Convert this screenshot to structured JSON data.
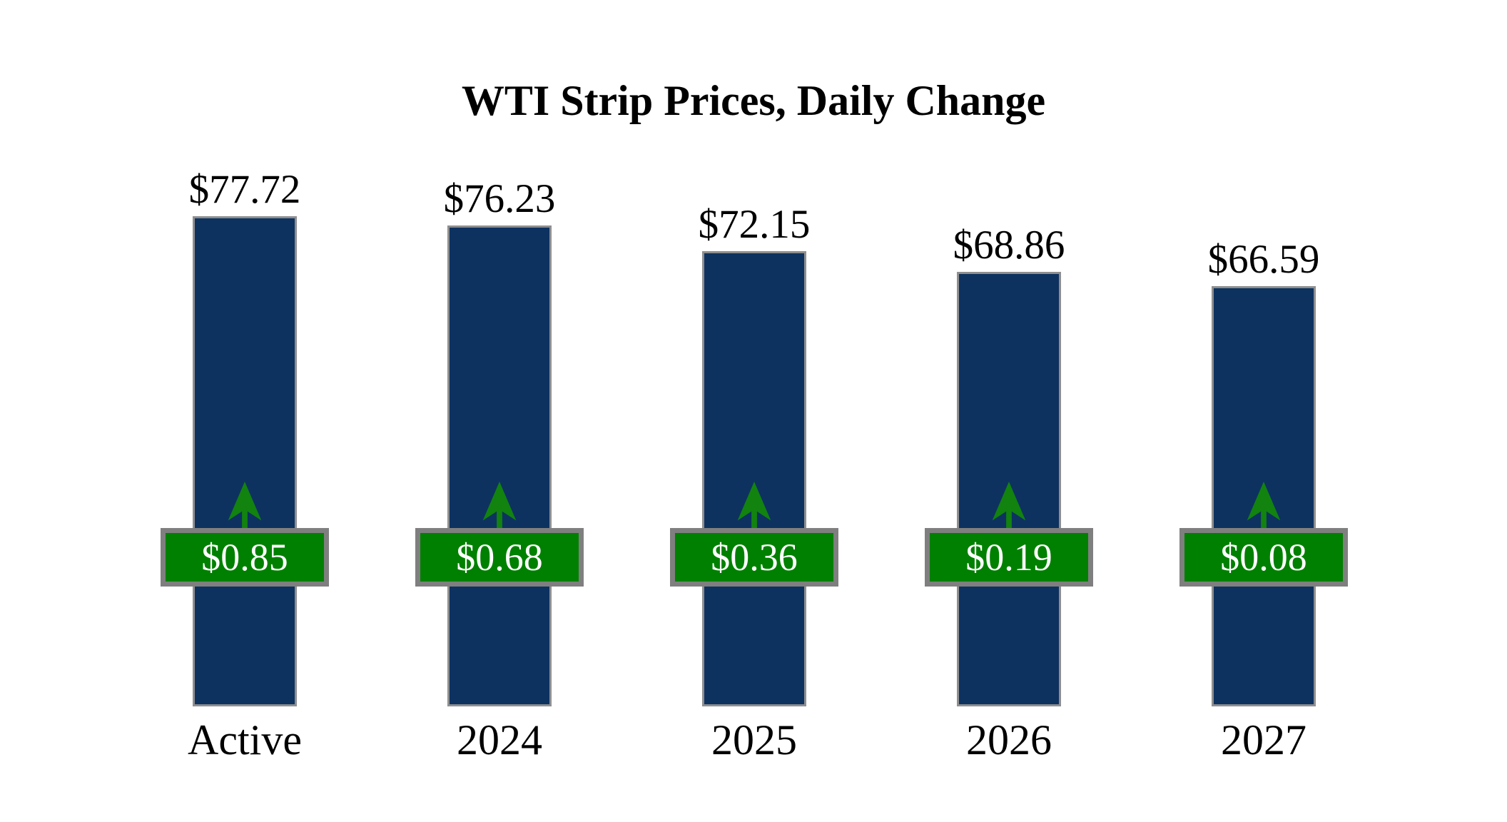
{
  "title": "WTI Strip Prices, Daily Change",
  "icons": {
    "change_direction": "up-arrow"
  },
  "colors": {
    "background": "#ffffff",
    "bar_fill": "#0d3260",
    "bar_border": "#8f8f8f",
    "change_fill": "#008000",
    "change_border": "#7f7f7f",
    "change_text": "#ffffff",
    "arrow_green": "#12830f",
    "label_text": "#000000"
  },
  "chart_data": {
    "type": "bar",
    "title": "WTI Strip Prices, Daily Change",
    "categories": [
      "Active",
      "2024",
      "2025",
      "2026",
      "2027"
    ],
    "series": [
      {
        "name": "WTI strip price",
        "values": [
          77.72,
          76.23,
          72.15,
          68.86,
          66.59
        ],
        "labels": [
          "$77.72",
          "$76.23",
          "$72.15",
          "$68.86",
          "$66.59"
        ],
        "label_position": "above-bar"
      },
      {
        "name": "Daily change",
        "values": [
          0.85,
          0.68,
          0.36,
          0.19,
          0.08
        ],
        "labels": [
          "$0.85",
          "$0.68",
          "$0.36",
          "$0.19",
          "$0.08"
        ],
        "direction": "up",
        "label_position": "boxed-on-bar"
      }
    ],
    "xlabel": "",
    "ylabel": "",
    "ylim": [
      0,
      88
    ],
    "zero_based_bars": true,
    "grid": false,
    "legend_position": "none",
    "axes_visible": false
  }
}
